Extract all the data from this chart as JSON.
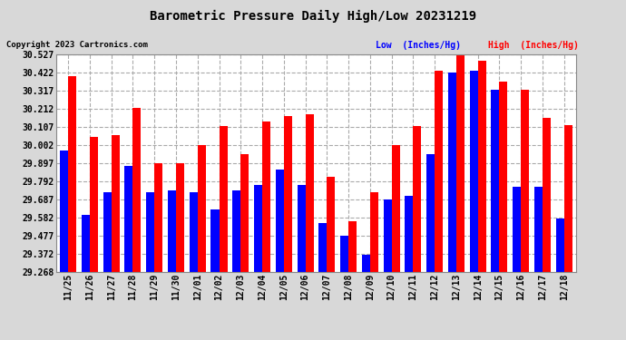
{
  "title": "Barometric Pressure Daily High/Low 20231219",
  "copyright": "Copyright 2023 Cartronics.com",
  "legend_low": "Low  (Inches/Hg)",
  "legend_high": "High  (Inches/Hg)",
  "dates": [
    "11/25",
    "11/26",
    "11/27",
    "11/28",
    "11/29",
    "11/30",
    "12/01",
    "12/02",
    "12/03",
    "12/04",
    "12/05",
    "12/06",
    "12/07",
    "12/08",
    "12/09",
    "12/10",
    "12/11",
    "12/12",
    "12/13",
    "12/14",
    "12/15",
    "12/16",
    "12/17",
    "12/18"
  ],
  "high_values": [
    30.4,
    30.05,
    30.06,
    30.22,
    29.9,
    29.9,
    30.0,
    30.11,
    29.95,
    30.14,
    30.17,
    30.18,
    29.82,
    29.56,
    29.73,
    30.0,
    30.11,
    30.43,
    30.53,
    30.49,
    30.37,
    30.32,
    30.16,
    30.12
  ],
  "low_values": [
    29.97,
    29.6,
    29.73,
    29.88,
    29.73,
    29.74,
    29.73,
    29.63,
    29.74,
    29.77,
    29.86,
    29.77,
    29.55,
    29.48,
    29.37,
    29.69,
    29.71,
    29.95,
    30.42,
    30.43,
    30.32,
    29.76,
    29.76,
    29.58
  ],
  "ylim_min": 29.268,
  "ylim_max": 30.527,
  "yticks": [
    29.268,
    29.372,
    29.477,
    29.582,
    29.687,
    29.792,
    29.897,
    30.002,
    30.107,
    30.212,
    30.317,
    30.422,
    30.527
  ],
  "bar_color_high": "#ff0000",
  "bar_color_low": "#0000ff",
  "plot_bg_color": "#ffffff",
  "fig_bg_color": "#d8d8d8",
  "grid_color": "#aaaaaa",
  "title_color": "#000000",
  "copyright_color": "#000000",
  "legend_low_color": "#0000ff",
  "legend_high_color": "#ff0000",
  "bar_width": 0.38
}
